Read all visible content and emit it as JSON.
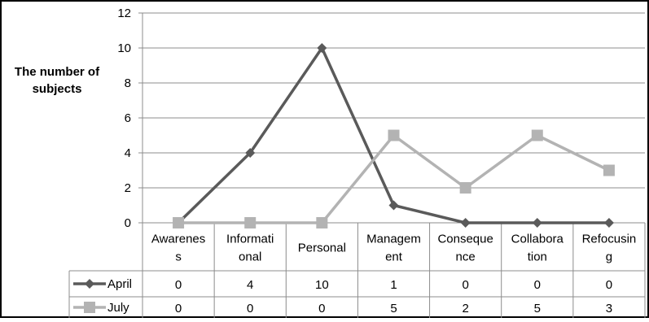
{
  "chart_data": {
    "type": "line",
    "title": "",
    "xlabel": "",
    "ylabel": "The number of subjects",
    "categories": [
      [
        "Awarenes",
        "s"
      ],
      [
        "Informati",
        "onal"
      ],
      [
        "Personal"
      ],
      [
        "Managem",
        "ent"
      ],
      [
        "Conseque",
        "nce"
      ],
      [
        "Collabora",
        "tion"
      ],
      [
        "Refocusin",
        "g"
      ]
    ],
    "ylim": [
      0,
      12
    ],
    "yticks": [
      0,
      2,
      4,
      6,
      8,
      10,
      12
    ],
    "grid": true,
    "legend": "data-table",
    "series": [
      {
        "name": "April",
        "values": [
          0,
          4,
          10,
          1,
          0,
          0,
          0
        ],
        "color": "#5a5a5a",
        "marker": "diamond"
      },
      {
        "name": "July",
        "values": [
          0,
          0,
          0,
          5,
          2,
          5,
          3
        ],
        "color": "#b3b3b3",
        "marker": "square"
      }
    ]
  }
}
